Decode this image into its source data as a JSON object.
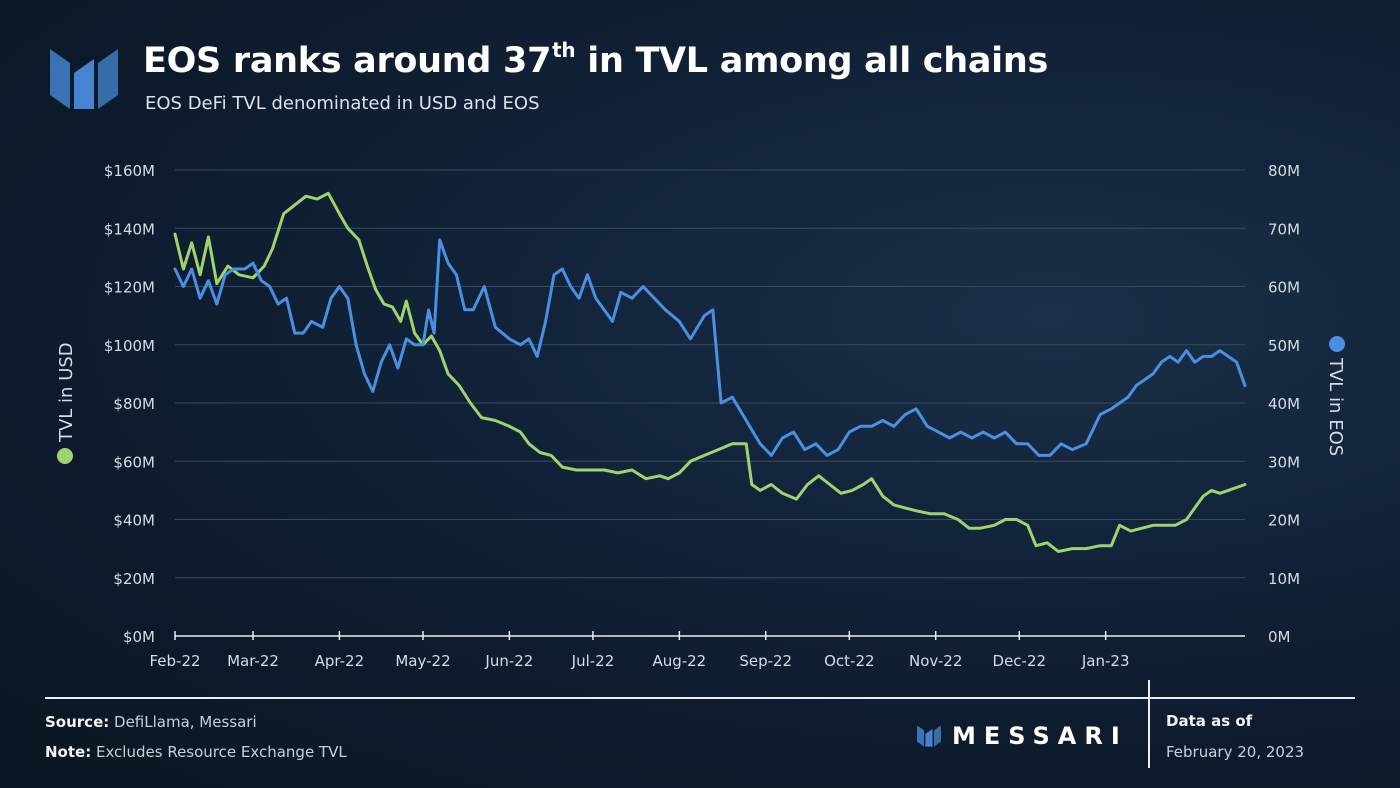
{
  "header": {
    "title_main": "EOS ranks around 37",
    "title_sup": "th",
    "title_rest": " in TVL among all chains",
    "subtitle": "EOS DeFi TVL denominated in USD and EOS"
  },
  "footer": {
    "source_label": "Source:",
    "source_text": " DefiLlama, Messari",
    "note_label": "Note:",
    "note_text": " Excludes Resource Exchange TVL",
    "brand": "MESSARI",
    "data_as_of_label": "Data as of",
    "data_as_of_date": "February 20, 2023"
  },
  "colors": {
    "usd_series": "#9ed46f",
    "eos_series": "#4a90e2",
    "logo_accent": "#4a90e2",
    "grid": "#3a4a5e",
    "axis_text": "#d5dce5"
  },
  "icons": {
    "logo": "messari-logo-icon"
  },
  "chart_data": {
    "type": "line",
    "title": "EOS ranks around 37th in TVL among all chains",
    "subtitle": "EOS DeFi TVL denominated in USD and EOS",
    "x_tick_labels": [
      "Feb-22",
      "Mar-22",
      "Apr-22",
      "May-22",
      "Jun-22",
      "Jul-22",
      "Aug-22",
      "Sep-22",
      "Oct-22",
      "Nov-22",
      "Dec-22",
      "Jan-23"
    ],
    "x_range": [
      "2022-02-01",
      "2023-02-20"
    ],
    "y_left": {
      "label": "TVL in USD",
      "unit": "$M",
      "range": [
        0,
        160
      ],
      "tick_labels": [
        "$0M",
        "$20M",
        "$40M",
        "$60M",
        "$80M",
        "$100M",
        "$120M",
        "$140M",
        "$160M"
      ]
    },
    "y_right": {
      "label": "TVL in EOS",
      "unit": "M",
      "range": [
        0,
        80
      ],
      "tick_labels": [
        "0M",
        "10M",
        "20M",
        "30M",
        "40M",
        "50M",
        "60M",
        "70M",
        "80M"
      ]
    },
    "grid": true,
    "legend": "axis-labels",
    "series": [
      {
        "name": "TVL in USD",
        "axis": "left",
        "color": "#9ed46f",
        "points": [
          [
            "2022-02-01",
            138
          ],
          [
            "2022-02-04",
            126
          ],
          [
            "2022-02-07",
            135
          ],
          [
            "2022-02-10",
            124
          ],
          [
            "2022-02-13",
            137
          ],
          [
            "2022-02-16",
            121
          ],
          [
            "2022-02-20",
            127
          ],
          [
            "2022-02-24",
            124
          ],
          [
            "2022-03-01",
            123
          ],
          [
            "2022-03-05",
            127
          ],
          [
            "2022-03-08",
            133
          ],
          [
            "2022-03-12",
            145
          ],
          [
            "2022-03-16",
            148
          ],
          [
            "2022-03-20",
            151
          ],
          [
            "2022-03-24",
            150
          ],
          [
            "2022-03-28",
            152
          ],
          [
            "2022-04-01",
            145
          ],
          [
            "2022-04-04",
            140
          ],
          [
            "2022-04-08",
            136
          ],
          [
            "2022-04-11",
            127
          ],
          [
            "2022-04-14",
            119
          ],
          [
            "2022-04-17",
            114
          ],
          [
            "2022-04-20",
            113
          ],
          [
            "2022-04-23",
            108
          ],
          [
            "2022-04-25",
            115
          ],
          [
            "2022-04-28",
            104
          ],
          [
            "2022-05-01",
            100
          ],
          [
            "2022-05-04",
            103
          ],
          [
            "2022-05-07",
            98
          ],
          [
            "2022-05-10",
            90
          ],
          [
            "2022-05-14",
            86
          ],
          [
            "2022-05-18",
            80
          ],
          [
            "2022-05-22",
            75
          ],
          [
            "2022-05-27",
            74
          ],
          [
            "2022-06-01",
            72
          ],
          [
            "2022-06-05",
            70
          ],
          [
            "2022-06-08",
            66
          ],
          [
            "2022-06-12",
            63
          ],
          [
            "2022-06-16",
            62
          ],
          [
            "2022-06-20",
            58
          ],
          [
            "2022-06-25",
            57
          ],
          [
            "2022-07-01",
            57
          ],
          [
            "2022-07-05",
            57
          ],
          [
            "2022-07-10",
            56
          ],
          [
            "2022-07-15",
            57
          ],
          [
            "2022-07-20",
            54
          ],
          [
            "2022-07-25",
            55
          ],
          [
            "2022-07-28",
            54
          ],
          [
            "2022-08-01",
            56
          ],
          [
            "2022-08-05",
            60
          ],
          [
            "2022-08-10",
            62
          ],
          [
            "2022-08-15",
            64
          ],
          [
            "2022-08-20",
            66
          ],
          [
            "2022-08-25",
            66
          ],
          [
            "2022-08-27",
            52
          ],
          [
            "2022-08-30",
            50
          ],
          [
            "2022-09-03",
            52
          ],
          [
            "2022-09-07",
            49
          ],
          [
            "2022-09-12",
            47
          ],
          [
            "2022-09-16",
            52
          ],
          [
            "2022-09-20",
            55
          ],
          [
            "2022-09-24",
            52
          ],
          [
            "2022-09-28",
            49
          ],
          [
            "2022-10-02",
            50
          ],
          [
            "2022-10-06",
            52
          ],
          [
            "2022-10-09",
            54
          ],
          [
            "2022-10-13",
            48
          ],
          [
            "2022-10-17",
            45
          ],
          [
            "2022-10-21",
            44
          ],
          [
            "2022-10-25",
            43
          ],
          [
            "2022-10-30",
            42
          ],
          [
            "2022-11-04",
            42
          ],
          [
            "2022-11-09",
            40
          ],
          [
            "2022-11-13",
            37
          ],
          [
            "2022-11-17",
            37
          ],
          [
            "2022-11-22",
            38
          ],
          [
            "2022-11-26",
            40
          ],
          [
            "2022-11-30",
            40
          ],
          [
            "2022-12-04",
            38
          ],
          [
            "2022-12-07",
            31
          ],
          [
            "2022-12-11",
            32
          ],
          [
            "2022-12-15",
            29
          ],
          [
            "2022-12-20",
            30
          ],
          [
            "2022-12-25",
            30
          ],
          [
            "2022-12-30",
            31
          ],
          [
            "2023-01-03",
            31
          ],
          [
            "2023-01-06",
            38
          ],
          [
            "2023-01-10",
            36
          ],
          [
            "2023-01-14",
            37
          ],
          [
            "2023-01-18",
            38
          ],
          [
            "2023-01-22",
            38
          ],
          [
            "2023-01-26",
            38
          ],
          [
            "2023-01-30",
            40
          ],
          [
            "2023-02-02",
            44
          ],
          [
            "2023-02-05",
            48
          ],
          [
            "2023-02-08",
            50
          ],
          [
            "2023-02-11",
            49
          ],
          [
            "2023-02-14",
            50
          ],
          [
            "2023-02-17",
            51
          ],
          [
            "2023-02-20",
            52
          ]
        ]
      },
      {
        "name": "TVL in EOS",
        "axis": "right",
        "color": "#4a90e2",
        "points": [
          [
            "2022-02-01",
            63
          ],
          [
            "2022-02-04",
            60
          ],
          [
            "2022-02-07",
            63
          ],
          [
            "2022-02-10",
            58
          ],
          [
            "2022-02-13",
            61
          ],
          [
            "2022-02-16",
            57
          ],
          [
            "2022-02-19",
            62
          ],
          [
            "2022-02-22",
            63
          ],
          [
            "2022-02-26",
            63
          ],
          [
            "2022-03-01",
            64
          ],
          [
            "2022-03-04",
            61
          ],
          [
            "2022-03-07",
            60
          ],
          [
            "2022-03-10",
            57
          ],
          [
            "2022-03-13",
            58
          ],
          [
            "2022-03-16",
            52
          ],
          [
            "2022-03-19",
            52
          ],
          [
            "2022-03-22",
            54
          ],
          [
            "2022-03-26",
            53
          ],
          [
            "2022-03-29",
            58
          ],
          [
            "2022-04-01",
            60
          ],
          [
            "2022-04-04",
            58
          ],
          [
            "2022-04-07",
            50
          ],
          [
            "2022-04-10",
            45
          ],
          [
            "2022-04-13",
            42
          ],
          [
            "2022-04-16",
            47
          ],
          [
            "2022-04-19",
            50
          ],
          [
            "2022-04-22",
            46
          ],
          [
            "2022-04-25",
            51
          ],
          [
            "2022-04-28",
            50
          ],
          [
            "2022-05-01",
            50
          ],
          [
            "2022-05-03",
            56
          ],
          [
            "2022-05-05",
            52
          ],
          [
            "2022-05-07",
            68
          ],
          [
            "2022-05-10",
            64
          ],
          [
            "2022-05-13",
            62
          ],
          [
            "2022-05-16",
            56
          ],
          [
            "2022-05-19",
            56
          ],
          [
            "2022-05-23",
            60
          ],
          [
            "2022-05-27",
            53
          ],
          [
            "2022-06-01",
            51
          ],
          [
            "2022-06-05",
            50
          ],
          [
            "2022-06-08",
            51
          ],
          [
            "2022-06-11",
            48
          ],
          [
            "2022-06-14",
            54
          ],
          [
            "2022-06-17",
            62
          ],
          [
            "2022-06-20",
            63
          ],
          [
            "2022-06-23",
            60
          ],
          [
            "2022-06-26",
            58
          ],
          [
            "2022-06-29",
            62
          ],
          [
            "2022-07-02",
            58
          ],
          [
            "2022-07-05",
            56
          ],
          [
            "2022-07-08",
            54
          ],
          [
            "2022-07-11",
            59
          ],
          [
            "2022-07-15",
            58
          ],
          [
            "2022-07-19",
            60
          ],
          [
            "2022-07-23",
            58
          ],
          [
            "2022-07-27",
            56
          ],
          [
            "2022-08-01",
            54
          ],
          [
            "2022-08-05",
            51
          ],
          [
            "2022-08-10",
            55
          ],
          [
            "2022-08-13",
            56
          ],
          [
            "2022-08-16",
            40
          ],
          [
            "2022-08-20",
            41
          ],
          [
            "2022-08-25",
            37
          ],
          [
            "2022-08-30",
            33
          ],
          [
            "2022-09-03",
            31
          ],
          [
            "2022-09-07",
            34
          ],
          [
            "2022-09-11",
            35
          ],
          [
            "2022-09-15",
            32
          ],
          [
            "2022-09-19",
            33
          ],
          [
            "2022-09-23",
            31
          ],
          [
            "2022-09-27",
            32
          ],
          [
            "2022-10-01",
            35
          ],
          [
            "2022-10-05",
            36
          ],
          [
            "2022-10-09",
            36
          ],
          [
            "2022-10-13",
            37
          ],
          [
            "2022-10-17",
            36
          ],
          [
            "2022-10-21",
            38
          ],
          [
            "2022-10-25",
            39
          ],
          [
            "2022-10-29",
            36
          ],
          [
            "2022-11-02",
            35
          ],
          [
            "2022-11-06",
            34
          ],
          [
            "2022-11-10",
            35
          ],
          [
            "2022-11-14",
            34
          ],
          [
            "2022-11-18",
            35
          ],
          [
            "2022-11-22",
            34
          ],
          [
            "2022-11-26",
            35
          ],
          [
            "2022-11-30",
            33
          ],
          [
            "2022-12-04",
            33
          ],
          [
            "2022-12-08",
            31
          ],
          [
            "2022-12-12",
            31
          ],
          [
            "2022-12-16",
            33
          ],
          [
            "2022-12-20",
            32
          ],
          [
            "2022-12-25",
            33
          ],
          [
            "2022-12-30",
            38
          ],
          [
            "2023-01-03",
            39
          ],
          [
            "2023-01-06",
            40
          ],
          [
            "2023-01-09",
            41
          ],
          [
            "2023-01-12",
            43
          ],
          [
            "2023-01-15",
            44
          ],
          [
            "2023-01-18",
            45
          ],
          [
            "2023-01-21",
            47
          ],
          [
            "2023-01-24",
            48
          ],
          [
            "2023-01-27",
            47
          ],
          [
            "2023-01-30",
            49
          ],
          [
            "2023-02-02",
            47
          ],
          [
            "2023-02-05",
            48
          ],
          [
            "2023-02-08",
            48
          ],
          [
            "2023-02-11",
            49
          ],
          [
            "2023-02-14",
            48
          ],
          [
            "2023-02-17",
            47
          ],
          [
            "2023-02-20",
            43
          ]
        ]
      }
    ]
  }
}
